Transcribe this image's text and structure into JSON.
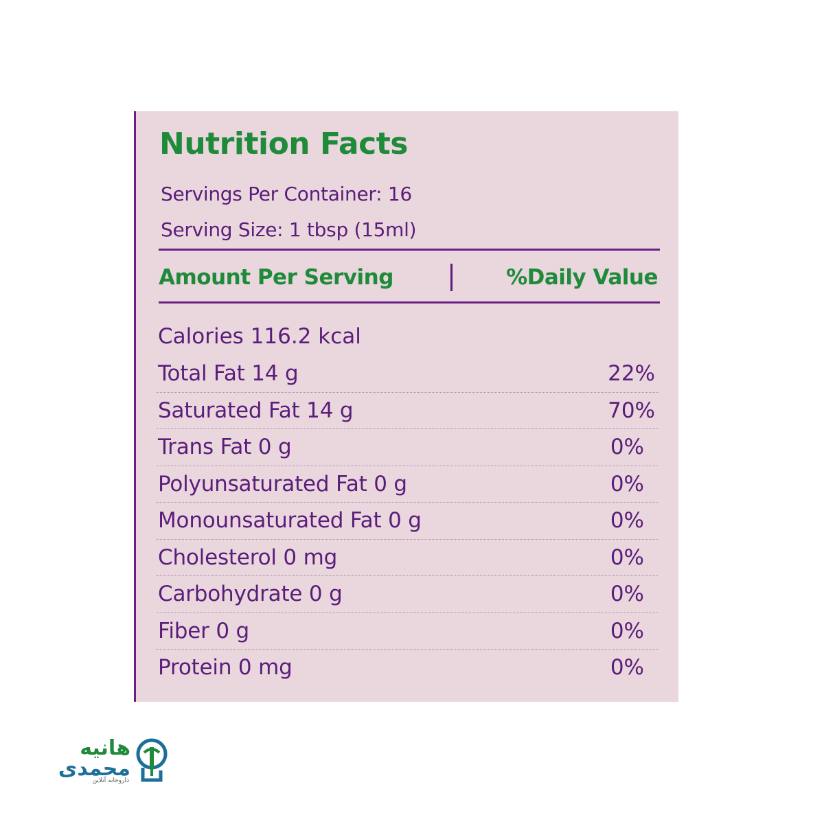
{
  "label": {
    "title": "Nutrition Facts",
    "servings_per_container": "Servings Per Container: 16",
    "serving_size": "Serving Size: 1 tbsp (15ml)",
    "header_left": "Amount Per Serving",
    "header_right": "%Daily Value",
    "calories": "Calories 116.2 kcal",
    "rows": [
      {
        "name": "Total Fat 14 g",
        "dv": "22%"
      },
      {
        "name": "Saturated Fat 14 g",
        "dv": "70%"
      },
      {
        "name": "Trans Fat 0 g",
        "dv": "0%"
      },
      {
        "name": "Polyunsaturated Fat 0 g",
        "dv": "0%"
      },
      {
        "name": "Monounsaturated Fat 0 g",
        "dv": "0%"
      },
      {
        "name": "Cholesterol 0 mg",
        "dv": "0%"
      },
      {
        "name": "Carbohydrate 0 g",
        "dv": "0%"
      },
      {
        "name": "Fiber 0 g",
        "dv": "0%"
      },
      {
        "name": "Protein 0 mg",
        "dv": "0%"
      }
    ]
  },
  "logo": {
    "line1": "هانیه",
    "line2": "محمدی",
    "tagline": "داروخانه آنلاین"
  },
  "colors": {
    "panel_bg": "#ead7de",
    "green": "#1f8a3a",
    "purple": "#5a1d7a"
  }
}
